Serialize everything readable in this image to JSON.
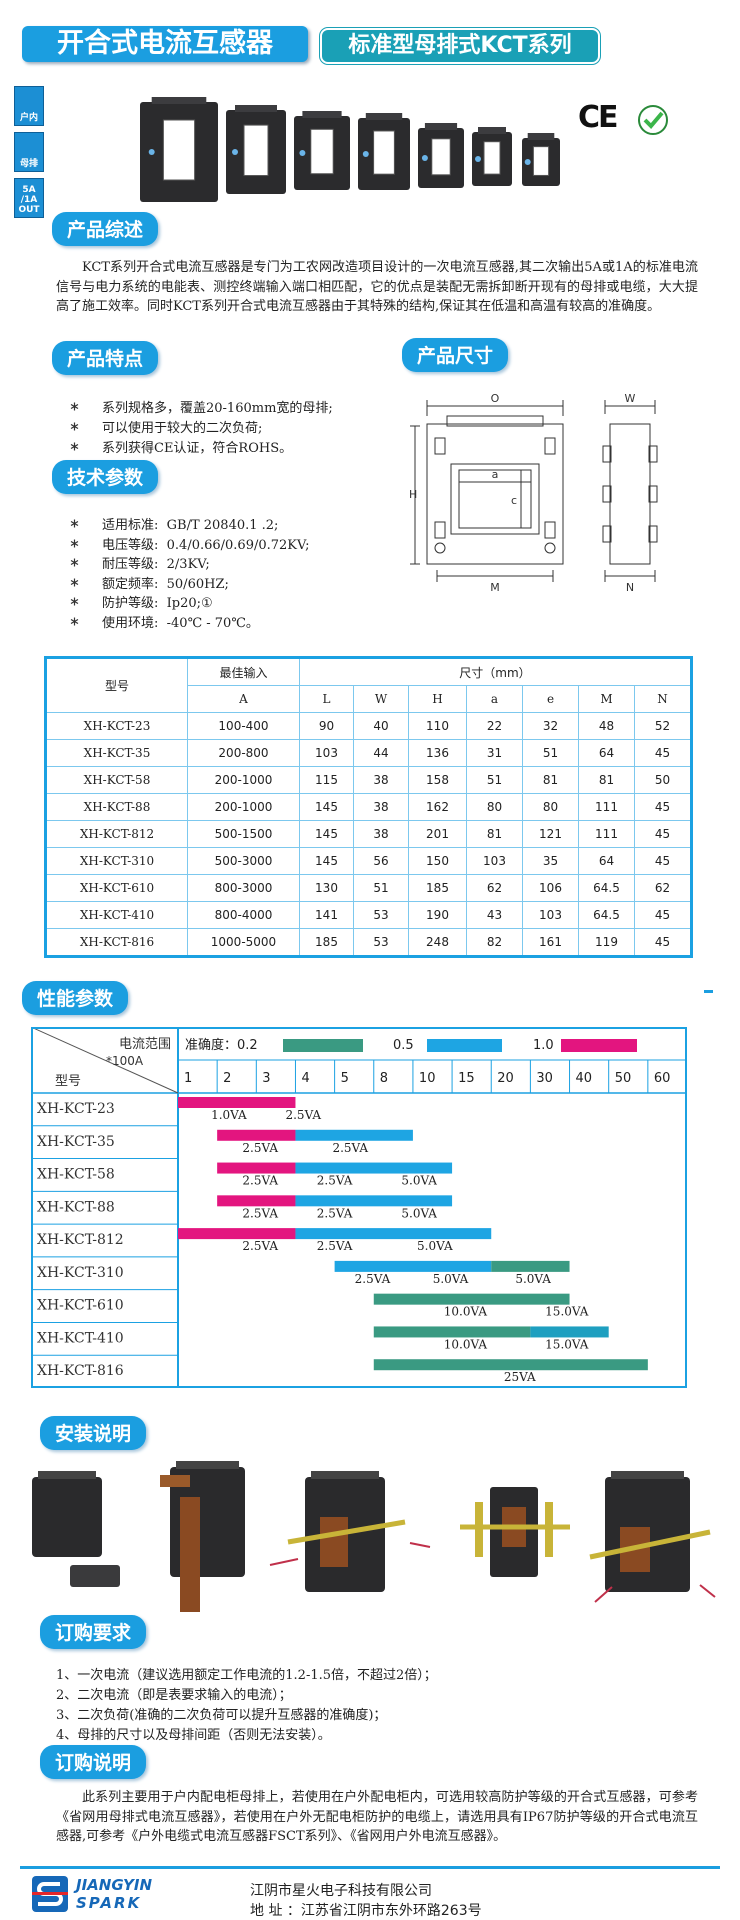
{
  "header": {
    "title": "开合式电流互感器",
    "subtitle": "标准型母排式KCT系列"
  },
  "badges": [
    [
      "户内"
    ],
    [
      "母排"
    ],
    [
      "5A",
      "/1A",
      "OUT"
    ]
  ],
  "cert": "CE",
  "overview": {
    "heading": "产品综述",
    "text": "KCT系列开合式电流互感器是专门为工农网改造项目设计的一次电流互感器,其二次输出5A或1A的标准电流信号与电力系统的电能表、测控终端输入端口相匹配，它的优点是装配无需拆卸断开现有的母排或电缆，大大提高了施工效率。同时KCT系列开合式电流互感器由于其特殊的结构,保证其在低温和高温有较高的准确度。"
  },
  "features": {
    "heading": "产品特点",
    "items": [
      "系列规格多，覆盖20-160mm宽的母排;",
      "可以使用于较大的二次负荷;",
      "系列获得CE认证，符合ROHS。"
    ]
  },
  "dimensions": {
    "heading": "产品尺寸",
    "labels": {
      "O": "O",
      "W": "W",
      "H": "H",
      "a": "a",
      "c": "c",
      "M": "M",
      "N": "N"
    }
  },
  "specs": {
    "heading": "技术参数",
    "items": [
      "适用标准:  GB/T 20840.1 .2;",
      "电压等级:  0.4/0.66/0.69/0.72KV;",
      "耐压等级:  2/3KV;",
      "额定频率:  50/60HZ;",
      "防护等级:  Ip20;①",
      "使用环境:  -40℃ - 70℃。"
    ]
  },
  "table": {
    "headers": [
      "型号",
      "最佳输入",
      "尺寸（mm）"
    ],
    "subheaders": [
      "A",
      "L",
      "W",
      "H",
      "a",
      "e",
      "M",
      "N"
    ],
    "rows": [
      [
        "XH-KCT-23",
        "100-400",
        "90",
        "40",
        "110",
        "22",
        "32",
        "48",
        "52"
      ],
      [
        "XH-KCT-35",
        "200-800",
        "103",
        "44",
        "136",
        "31",
        "51",
        "64",
        "45"
      ],
      [
        "XH-KCT-58",
        "200-1000",
        "115",
        "38",
        "158",
        "51",
        "81",
        "81",
        "50"
      ],
      [
        "XH-KCT-88",
        "200-1000",
        "145",
        "38",
        "162",
        "80",
        "80",
        "111",
        "45"
      ],
      [
        "XH-KCT-812",
        "500-1500",
        "145",
        "38",
        "201",
        "81",
        "121",
        "111",
        "45"
      ],
      [
        "XH-KCT-310",
        "500-3000",
        "145",
        "56",
        "150",
        "103",
        "35",
        "64",
        "45"
      ],
      [
        "XH-KCT-610",
        "800-3000",
        "130",
        "51",
        "185",
        "62",
        "106",
        "64.5",
        "62"
      ],
      [
        "XH-KCT-410",
        "800-4000",
        "141",
        "53",
        "190",
        "43",
        "103",
        "64.5",
        "45"
      ],
      [
        "XH-KCT-816",
        "1000-5000",
        "185",
        "53",
        "248",
        "82",
        "161",
        "119",
        "45"
      ]
    ]
  },
  "performance": {
    "heading": "性能参数",
    "corner_top": "电流范围",
    "corner_unit": "*100A",
    "corner_bottom": "型号",
    "legend": [
      {
        "label": "准确度：0.2",
        "color": "#3a9a82"
      },
      {
        "label": "0.5",
        "color": "#1ea5e3"
      },
      {
        "label": "1.0",
        "color": "#e3157f"
      }
    ],
    "ticks": [
      1,
      2,
      3,
      4,
      5,
      8,
      10,
      15,
      20,
      30,
      40,
      50,
      60
    ],
    "rows": [
      {
        "model": "XH-KCT-23",
        "bars": [
          {
            "from": 1,
            "to": 4,
            "color": "#e3157f"
          }
        ],
        "labels": [
          {
            "text": "1.0VA",
            "at": 2.3
          },
          {
            "text": "2.5VA",
            "at": 4.2
          }
        ]
      },
      {
        "model": "XH-KCT-35",
        "bars": [
          {
            "from": 2,
            "to": 4,
            "color": "#e3157f"
          },
          {
            "from": 4,
            "to": 10,
            "color": "#1ea5e3"
          }
        ],
        "labels": [
          {
            "text": "2.5VA",
            "at": 3.1
          },
          {
            "text": "2.5VA",
            "at": 6.2
          }
        ]
      },
      {
        "model": "XH-KCT-58",
        "bars": [
          {
            "from": 2,
            "to": 4,
            "color": "#e3157f"
          },
          {
            "from": 4,
            "to": 15,
            "color": "#1ea5e3"
          }
        ],
        "labels": [
          {
            "text": "2.5VA",
            "at": 3.1
          },
          {
            "text": "2.5VA",
            "at": 5
          },
          {
            "text": "5.0VA",
            "at": 10.8
          }
        ]
      },
      {
        "model": "XH-KCT-88",
        "bars": [
          {
            "from": 2,
            "to": 4,
            "color": "#e3157f"
          },
          {
            "from": 4,
            "to": 15,
            "color": "#1ea5e3"
          }
        ],
        "labels": [
          {
            "text": "2.5VA",
            "at": 3.1
          },
          {
            "text": "2.5VA",
            "at": 5
          },
          {
            "text": "5.0VA",
            "at": 10.8
          }
        ]
      },
      {
        "model": "XH-KCT-812",
        "bars": [
          {
            "from": 1,
            "to": 4,
            "color": "#e3157f"
          },
          {
            "from": 4,
            "to": 20,
            "color": "#1ea5e3"
          }
        ],
        "labels": [
          {
            "text": "2.5VA",
            "at": 3.1
          },
          {
            "text": "2.5VA",
            "at": 5
          },
          {
            "text": "5.0VA",
            "at": 12.8
          }
        ]
      },
      {
        "model": "XH-KCT-310",
        "bars": [
          {
            "from": 5,
            "to": 20,
            "color": "#1ea5e3"
          },
          {
            "from": 20,
            "to": 40,
            "color": "#3a9a82"
          }
        ],
        "labels": [
          {
            "text": "2.5VA",
            "at": 7.9
          },
          {
            "text": "5.0VA",
            "at": 14.8
          },
          {
            "text": "5.0VA",
            "at": 30.7
          }
        ]
      },
      {
        "model": "XH-KCT-610",
        "bars": [
          {
            "from": 8,
            "to": 40,
            "color": "#3a9a82"
          }
        ],
        "labels": [
          {
            "text": "10.0VA",
            "at": 16.7
          },
          {
            "text": "15.0VA",
            "at": 39.3
          }
        ]
      },
      {
        "model": "XH-KCT-410",
        "bars": [
          {
            "from": 8,
            "to": 30,
            "color": "#3a9a82"
          },
          {
            "from": 30,
            "to": 50,
            "color": "#1e9fc0"
          }
        ],
        "labels": [
          {
            "text": "10.0VA",
            "at": 16.7
          },
          {
            "text": "15.0VA",
            "at": 39.3
          }
        ]
      },
      {
        "model": "XH-KCT-816",
        "bars": [
          {
            "from": 8,
            "to": 60,
            "color": "#3a9a82"
          }
        ],
        "labels": [
          {
            "text": "25VA",
            "at": 27.3
          }
        ]
      }
    ]
  },
  "install": {
    "heading": "安装说明"
  },
  "order": {
    "heading": "订购要求",
    "items": [
      "1、一次电流（建议选用额定工作电流的1.2-1.5倍，不超过2倍）；",
      "2、二次电流（即是表要求输入的电流）；",
      "3、二次负荷(准确的二次负荷可以提升互感器的准确度)；",
      "4、母排的尺寸以及母排间距（否则无法安装）。"
    ]
  },
  "note": {
    "heading": "订购说明",
    "text": "此系列主要用于户内配电柜母排上，若使用在户外配电柜内，可选用较高防护等级的开合式互感器，可参考《省网用母排式电流互感器》，若使用在户外无配电柜防护的电缆上，请选用具有IP67防护等级的开合式电流互感器,可参考《户外电缆式电流互感器FSCT系列》、《省网用户外电流互感器》。"
  },
  "footer": {
    "logo_top": "JIANGYIN",
    "logo_bottom": "SPARK",
    "company": "江阴市星火电子科技有限公司",
    "address": "地 址 ：江苏省江阴市东外环路263号"
  }
}
